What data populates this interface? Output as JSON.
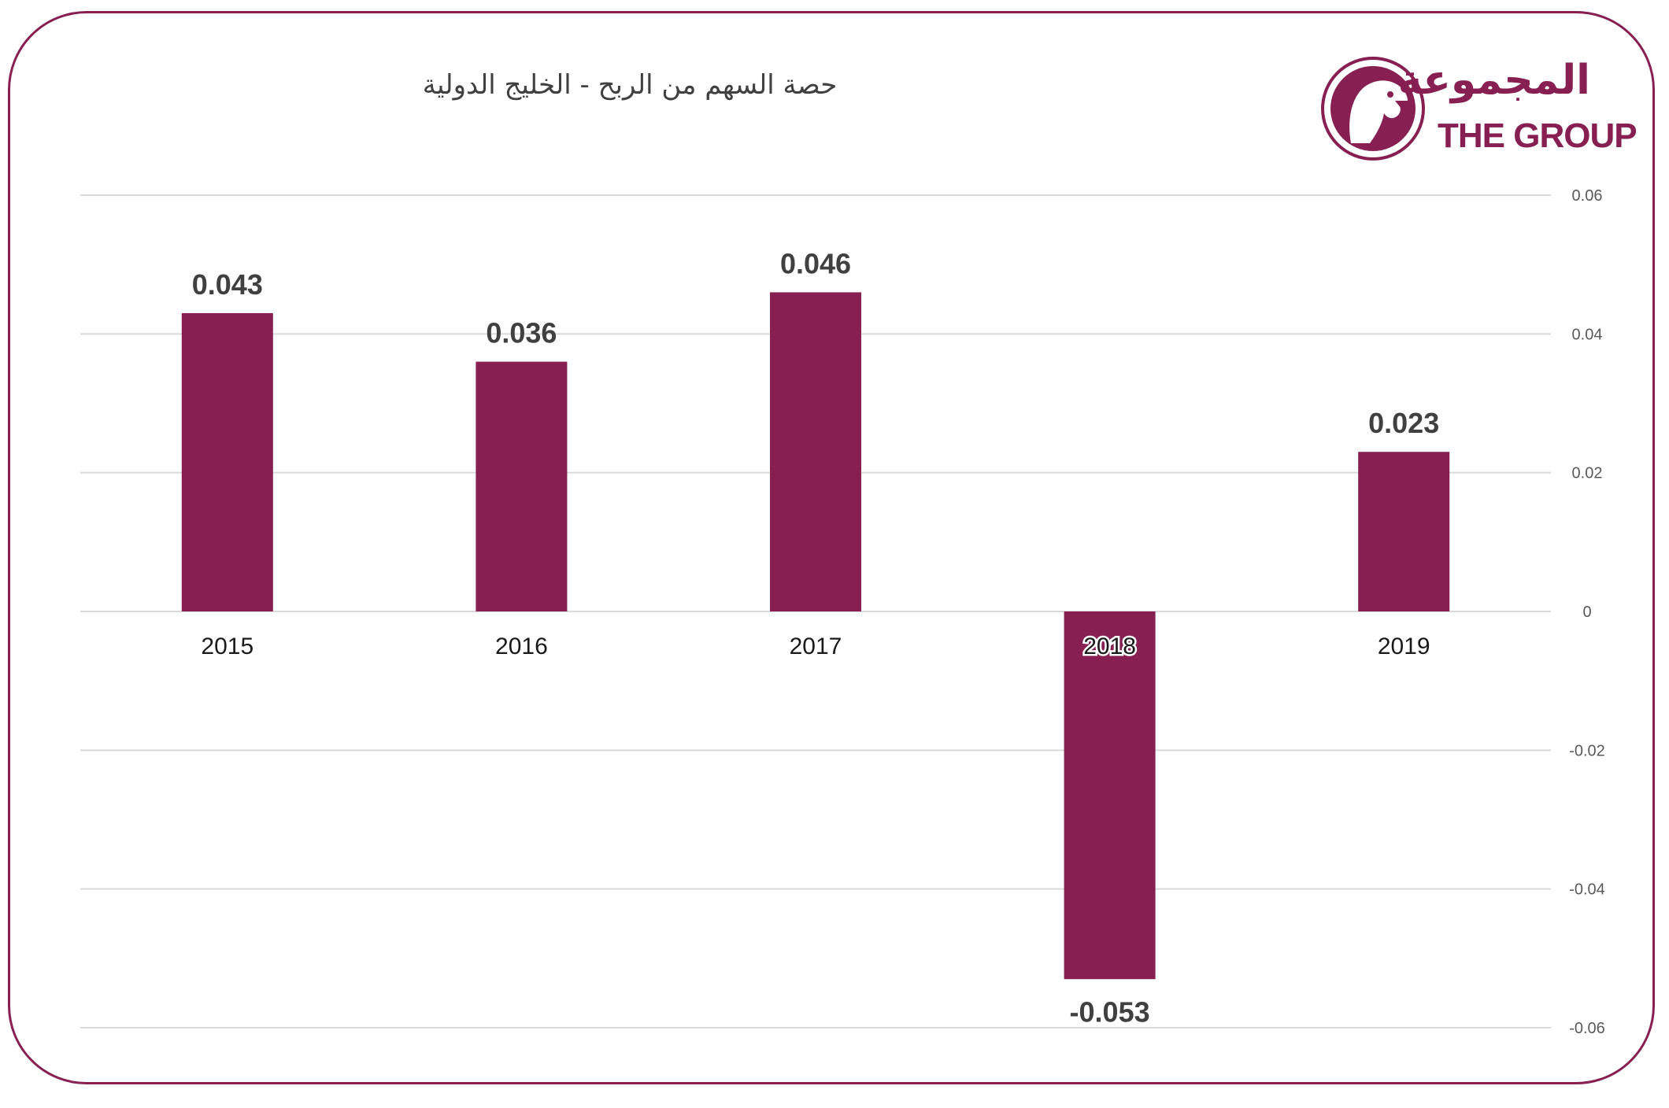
{
  "colors": {
    "bar": "#871f52",
    "frame": "#871f52",
    "grid": "#d9d9d9",
    "text": "#404040"
  },
  "logo": {
    "arabic_text": "المجموعة",
    "english_text": "THE GROUP",
    "icon": "falcon-emblem-icon"
  },
  "chart_data": {
    "type": "bar",
    "title": "حصة السهم من الربح - الخليج الدولية",
    "categories": [
      "2015",
      "2016",
      "2017",
      "2018",
      "2019"
    ],
    "values": [
      0.043,
      0.036,
      0.046,
      -0.053,
      0.023
    ],
    "value_labels": [
      "0.043",
      "0.036",
      "0.046",
      "-0.053",
      "0.023"
    ],
    "yticks": [
      0.06,
      0.04,
      0.02,
      0,
      -0.02,
      -0.04,
      -0.06
    ],
    "ytick_labels": [
      "0.06",
      "0.04",
      "0.02",
      "0",
      "-0.02",
      "-0.04",
      "-0.06"
    ],
    "ylim": [
      -0.06,
      0.06
    ],
    "y_axis_side": "right",
    "grid": true,
    "legend": "none",
    "xlabel": "",
    "ylabel": ""
  }
}
